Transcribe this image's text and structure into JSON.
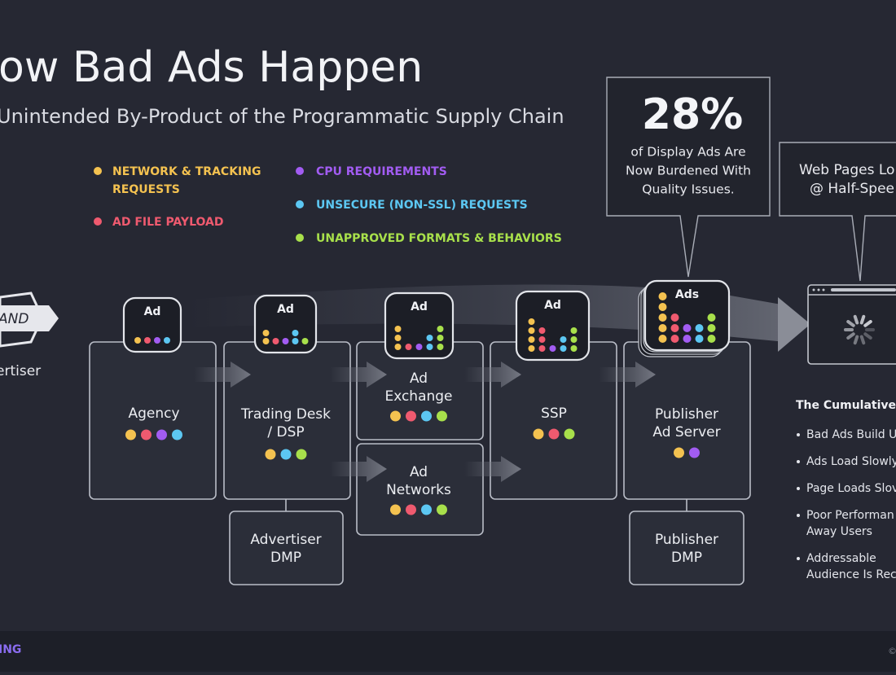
{
  "header": {
    "title": "ow Bad Ads Happen",
    "subtitle": "Unintended By-Product of the Programmatic Supply Chain"
  },
  "legend": [
    {
      "lines": [
        "NETWORK & TRACKING",
        "REQUESTS"
      ]
    },
    {
      "lines": [
        "AD FILE PAYLOAD"
      ]
    },
    {
      "lines": [
        "CPU REQUIREMENTS"
      ]
    },
    {
      "lines": [
        "UNSECURE (NON-SSL) REQUESTS"
      ]
    },
    {
      "lines": [
        "UNAPPROVED FORMATS & BEHAVIORS"
      ]
    }
  ],
  "callouts": [
    {
      "big": "28%",
      "lines": [
        "of Display Ads Are",
        "Now Burdened With",
        "Quality Issues."
      ]
    },
    {
      "lines": [
        "Web Pages Lo",
        "@ Half-Spee"
      ]
    }
  ],
  "brand": {
    "badge": "AND",
    "label": "ertiser"
  },
  "stages": [
    {
      "lines": [
        "Agency"
      ]
    },
    {
      "lines": [
        "Trading Desk",
        "/ DSP"
      ]
    },
    {
      "lines": [
        "Ad",
        "Exchange"
      ]
    },
    {
      "lines": [
        "Ad",
        "Networks"
      ]
    },
    {
      "lines": [
        "SSP"
      ]
    },
    {
      "lines": [
        "Publisher",
        "Ad Server"
      ]
    },
    {
      "lines": [
        "Advertiser",
        "DMP"
      ]
    },
    {
      "lines": [
        "Publisher",
        "DMP"
      ]
    }
  ],
  "ad_icons": [
    "Ad",
    "Ad",
    "Ad",
    "Ad",
    "Ads"
  ],
  "sidebar": {
    "title": "The Cumulative",
    "bullets": [
      [
        "Bad Ads Build U"
      ],
      [
        "Ads Load Slowly"
      ],
      [
        "Page Loads Slov"
      ],
      [
        "Poor Performan",
        "Away Users"
      ],
      [
        "Addressable",
        "Audience Is Rec"
      ]
    ]
  },
  "footer": {
    "left": "ING",
    "right": "©"
  }
}
